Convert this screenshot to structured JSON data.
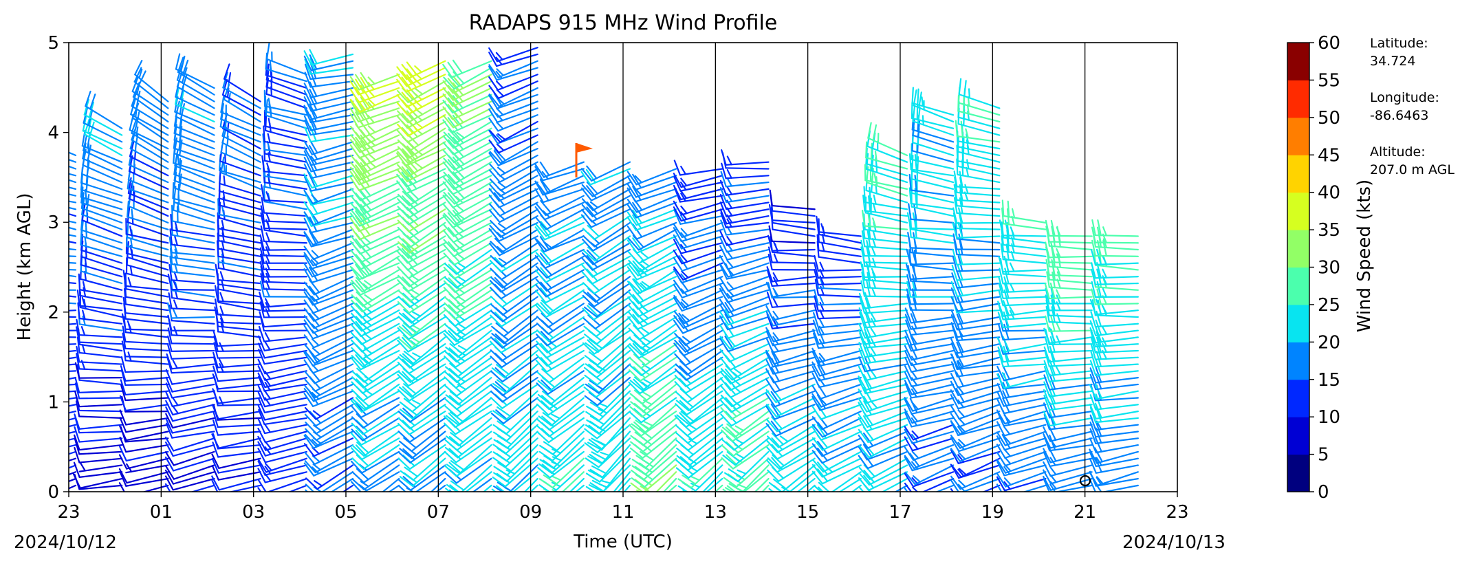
{
  "chart_data": {
    "type": "wind-barbs",
    "title": "RADAPS 915 MHz Wind Profile",
    "xlabel": "Time (UTC)",
    "ylabel": "Height (km AGL)",
    "x_tick_labels": [
      "23",
      "01",
      "03",
      "05",
      "07",
      "09",
      "11",
      "13",
      "15",
      "17",
      "19",
      "21",
      "23"
    ],
    "x_hours": [
      23,
      1,
      3,
      5,
      7,
      9,
      11,
      13,
      15,
      17,
      19,
      21,
      23
    ],
    "xlim_hours_elapsed": [
      0,
      24
    ],
    "start_date_label": "2024/10/12",
    "end_date_label": "2024/10/13",
    "y_tick_labels": [
      "0",
      "1",
      "2",
      "3",
      "4",
      "5"
    ],
    "ylim": [
      0,
      5
    ],
    "vertical_lines_every_hours": 2,
    "profile_hours": [
      23,
      0,
      1,
      2,
      3,
      4,
      5,
      6,
      7,
      8,
      9,
      10,
      11,
      12,
      13,
      14,
      15,
      16,
      17,
      18,
      19,
      20,
      21,
      22
    ],
    "profiles": [
      {
        "time": "23",
        "top_km": 3.8,
        "low_kts": 10,
        "high_kts": 18,
        "low_dir_deg": 250,
        "high_dir_deg": 290
      },
      {
        "time": "00",
        "top_km": 4.1,
        "low_kts": 8,
        "high_kts": 20,
        "low_dir_deg": 260,
        "high_dir_deg": 300
      },
      {
        "time": "01",
        "top_km": 4.4,
        "low_kts": 8,
        "high_kts": 18,
        "low_dir_deg": 255,
        "high_dir_deg": 305
      },
      {
        "time": "02",
        "top_km": 4.5,
        "low_kts": 9,
        "high_kts": 20,
        "low_dir_deg": 250,
        "high_dir_deg": 300
      },
      {
        "time": "03",
        "top_km": 4.4,
        "low_kts": 10,
        "high_kts": 16,
        "low_dir_deg": 255,
        "high_dir_deg": 300
      },
      {
        "time": "04",
        "top_km": 4.7,
        "low_kts": 12,
        "high_kts": 15,
        "low_dir_deg": 250,
        "high_dir_deg": 290
      },
      {
        "time": "05",
        "top_km": 4.9,
        "low_kts": 16,
        "high_kts": 20,
        "low_dir_deg": 240,
        "high_dir_deg": 260
      },
      {
        "time": "06",
        "top_km": 4.7,
        "low_kts": 17,
        "high_kts": 35,
        "low_dir_deg": 235,
        "high_dir_deg": 250
      },
      {
        "time": "07",
        "top_km": 4.8,
        "low_kts": 17,
        "high_kts": 36,
        "low_dir_deg": 230,
        "high_dir_deg": 245
      },
      {
        "time": "08",
        "top_km": 4.8,
        "low_kts": 20,
        "high_kts": 30,
        "low_dir_deg": 230,
        "high_dir_deg": 245
      },
      {
        "time": "09",
        "top_km": 5.0,
        "low_kts": 22,
        "high_kts": 15,
        "low_dir_deg": 225,
        "high_dir_deg": 250
      },
      {
        "time": "10",
        "top_km": 3.7,
        "low_kts": 24,
        "high_kts": 18,
        "low_dir_deg": 225,
        "high_dir_deg": 250
      },
      {
        "time": "11",
        "top_km": 3.7,
        "low_kts": 24,
        "high_kts": 18,
        "low_dir_deg": 220,
        "high_dir_deg": 245
      },
      {
        "time": "12",
        "top_km": 3.6,
        "low_kts": 30,
        "high_kts": 18,
        "low_dir_deg": 225,
        "high_dir_deg": 250
      },
      {
        "time": "13",
        "top_km": 3.6,
        "low_kts": 26,
        "high_kts": 12,
        "low_dir_deg": 225,
        "high_dir_deg": 260
      },
      {
        "time": "14",
        "top_km": 3.7,
        "low_kts": 28,
        "high_kts": 12,
        "low_dir_deg": 225,
        "high_dir_deg": 270
      },
      {
        "time": "15",
        "top_km": 3.2,
        "low_kts": 24,
        "high_kts": 10,
        "low_dir_deg": 230,
        "high_dir_deg": 280
      },
      {
        "time": "16",
        "top_km": 2.9,
        "low_kts": 22,
        "high_kts": 12,
        "low_dir_deg": 235,
        "high_dir_deg": 280
      },
      {
        "time": "17",
        "top_km": 3.8,
        "low_kts": 20,
        "high_kts": 25,
        "low_dir_deg": 240,
        "high_dir_deg": 290
      },
      {
        "time": "18",
        "top_km": 4.2,
        "low_kts": 15,
        "high_kts": 22,
        "low_dir_deg": 245,
        "high_dir_deg": 290
      },
      {
        "time": "19",
        "top_km": 4.3,
        "low_kts": 14,
        "high_kts": 25,
        "low_dir_deg": 245,
        "high_dir_deg": 285
      },
      {
        "time": "20",
        "top_km": 3.0,
        "low_kts": 15,
        "high_kts": 25,
        "low_dir_deg": 250,
        "high_dir_deg": 275
      },
      {
        "time": "21",
        "top_km": 2.9,
        "low_kts": 16,
        "high_kts": 28,
        "low_dir_deg": 255,
        "high_dir_deg": 275
      },
      {
        "time": "22",
        "top_km": 2.9,
        "low_kts": 16,
        "high_kts": 28,
        "low_dir_deg": 255,
        "high_dir_deg": 275
      }
    ],
    "colorbar": {
      "label": "Wind Speed (kts)",
      "ticks": [
        "0",
        "5",
        "10",
        "15",
        "20",
        "25",
        "30",
        "35",
        "40",
        "45",
        "50",
        "55",
        "60"
      ],
      "range": [
        0,
        60
      ],
      "colors": [
        "#00007f",
        "#0000d4",
        "#0028ff",
        "#0084ff",
        "#08e4f0",
        "#4bffad",
        "#92ff66",
        "#d6ff20",
        "#ffd300",
        "#ff7e00",
        "#ff2b00",
        "#8a0000"
      ]
    },
    "station": {
      "latitude_label": "Latitude:",
      "latitude_value": "34.724",
      "longitude_label": "Longitude:",
      "longitude_value": "-86.6463",
      "altitude_label": "Altitude:",
      "altitude_value": "207.0 m AGL"
    }
  }
}
